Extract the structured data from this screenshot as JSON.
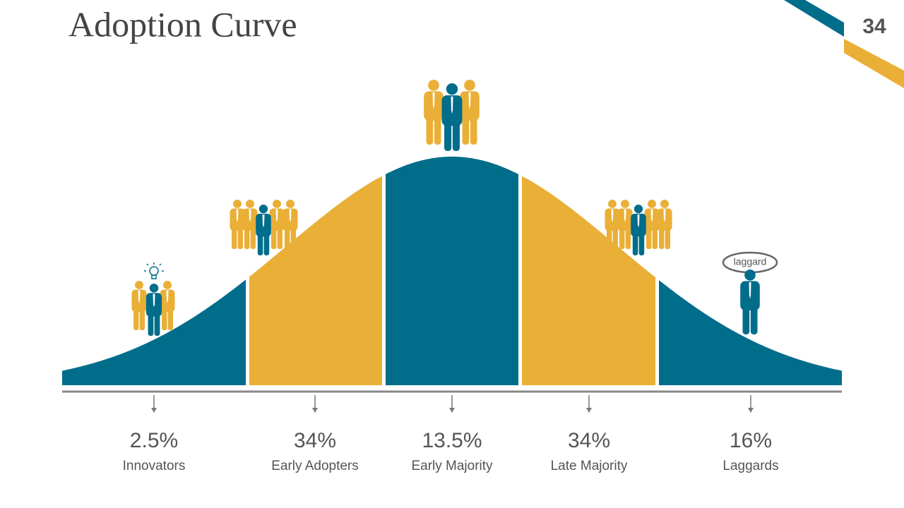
{
  "title": "Adoption Curve",
  "page_number": "34",
  "bubble": "laggard",
  "segments": [
    {
      "value": "2.5%",
      "label": "Innovators"
    },
    {
      "value": "34%",
      "label": "Early Adopters"
    },
    {
      "value": "13.5%",
      "label": "Early Majority"
    },
    {
      "value": "34%",
      "label": "Late Majority"
    },
    {
      "value": "16%",
      "label": "Laggards"
    }
  ]
}
